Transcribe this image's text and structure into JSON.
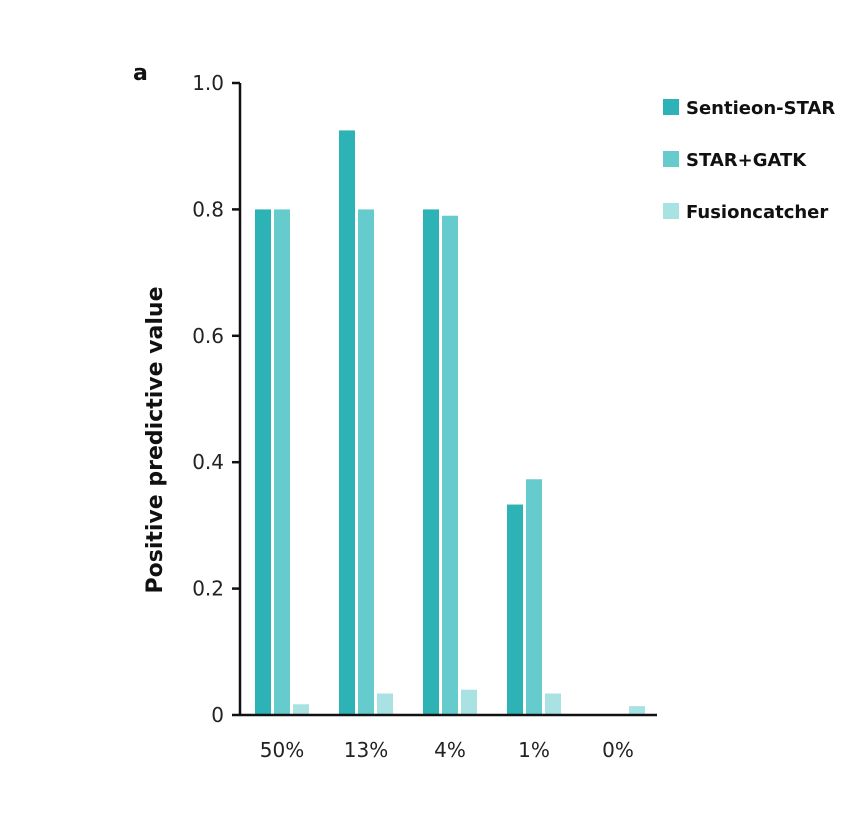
{
  "panel_label": "a",
  "chart_data": {
    "type": "bar",
    "title": "",
    "xlabel": "",
    "ylabel": "Positive predictive value",
    "ylim": [
      0,
      1.0
    ],
    "yticks": [
      0,
      0.2,
      0.4,
      0.6,
      0.8,
      1.0
    ],
    "ytick_labels": [
      "0",
      "0.2",
      "0.4",
      "0.6",
      "0.8",
      "1.0"
    ],
    "categories": [
      "50%",
      "13%",
      "4%",
      "1%",
      "0%"
    ],
    "legend_position": "top-right",
    "series": [
      {
        "name": "Sentieon-STAR",
        "color": "#2db3b5",
        "values": [
          0.8,
          0.925,
          0.8,
          0.333,
          0.0
        ]
      },
      {
        "name": "STAR+GATK",
        "color": "#66cbcd",
        "values": [
          0.8,
          0.8,
          0.79,
          0.373,
          0.0
        ]
      },
      {
        "name": "Fusioncatcher",
        "color": "#a8e2e3",
        "values": [
          0.017,
          0.034,
          0.04,
          0.034,
          0.014
        ]
      }
    ]
  }
}
